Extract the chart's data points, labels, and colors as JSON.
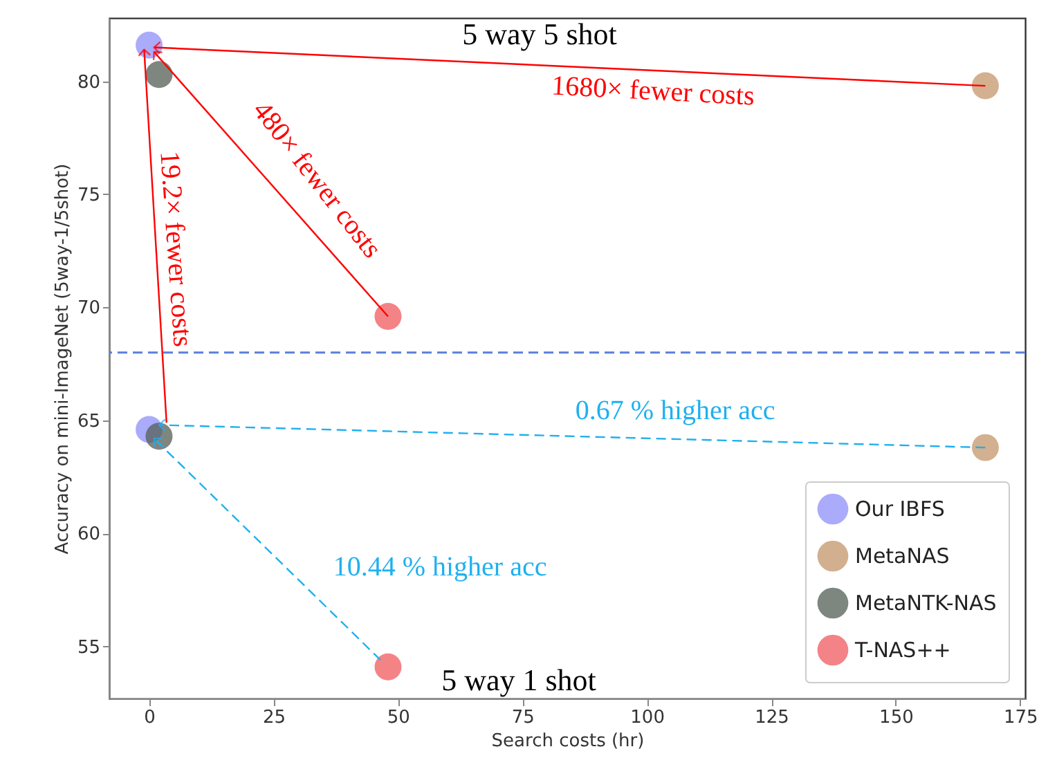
{
  "chart_data": {
    "type": "scatter",
    "xlabel": "Search costs (hr)",
    "ylabel": "Accuracy on mini-ImageNet (5way-1/5shot)",
    "xlim": [
      -8,
      176
    ],
    "xticks": [
      0,
      25,
      50,
      75,
      100,
      125,
      150,
      175
    ],
    "ylim": [
      52.7,
      82.8
    ],
    "yticks": [
      55,
      60,
      65,
      70,
      75,
      80
    ],
    "series": [
      {
        "name": "Our IBFS",
        "color": "#8f8ffa",
        "marker": "circle",
        "x": [
          0,
          0
        ],
        "values": [
          81.6,
          64.6
        ]
      },
      {
        "name": "MetaNAS",
        "color": "#c4956a",
        "marker": "circle",
        "x": [
          168,
          168
        ],
        "values": [
          79.8,
          63.8
        ]
      },
      {
        "name": "MetaNTK-NAS",
        "color": "#545e56",
        "marker": "circle",
        "x": [
          2,
          2
        ],
        "values": [
          80.3,
          64.3
        ]
      },
      {
        "name": "T-NAS++",
        "color": "#f05a5e",
        "marker": "circle",
        "x": [
          48,
          48
        ],
        "values": [
          69.6,
          54.1
        ]
      },
      {
        "type": "line",
        "color": "#ff0000",
        "line_style": "solid",
        "x": [
          168,
          1
        ],
        "values": [
          79.8,
          81.5
        ]
      },
      {
        "type": "line",
        "color": "#ff0000",
        "line_style": "solid",
        "x": [
          48,
          1
        ],
        "values": [
          69.6,
          81.3
        ]
      },
      {
        "type": "line",
        "color": "#ff0000",
        "line_style": "solid",
        "x": [
          3.5,
          -1
        ],
        "values": [
          64.9,
          81.4
        ]
      },
      {
        "type": "line",
        "color": "#1fb0ef",
        "line_style": "dashed",
        "x": [
          168,
          2
        ],
        "values": [
          63.8,
          64.8
        ]
      },
      {
        "type": "line",
        "color": "#1fb0ef",
        "line_style": "dashed",
        "x": [
          46.5,
          1
        ],
        "values": [
          54.4,
          64.2
        ]
      }
    ],
    "ref_lines": [
      {
        "axis": "y",
        "value": 68,
        "color": "#5b80d8",
        "line_style": "dashed"
      }
    ],
    "annotations": [
      "5 way 5 shot",
      "1680× fewer costs",
      "480× fewer costs",
      "19.2× fewer costs",
      "0.67 % higher acc",
      "10.44 % higher acc",
      "5 way 1 shot"
    ],
    "grid": false,
    "legend": "bottom right"
  }
}
